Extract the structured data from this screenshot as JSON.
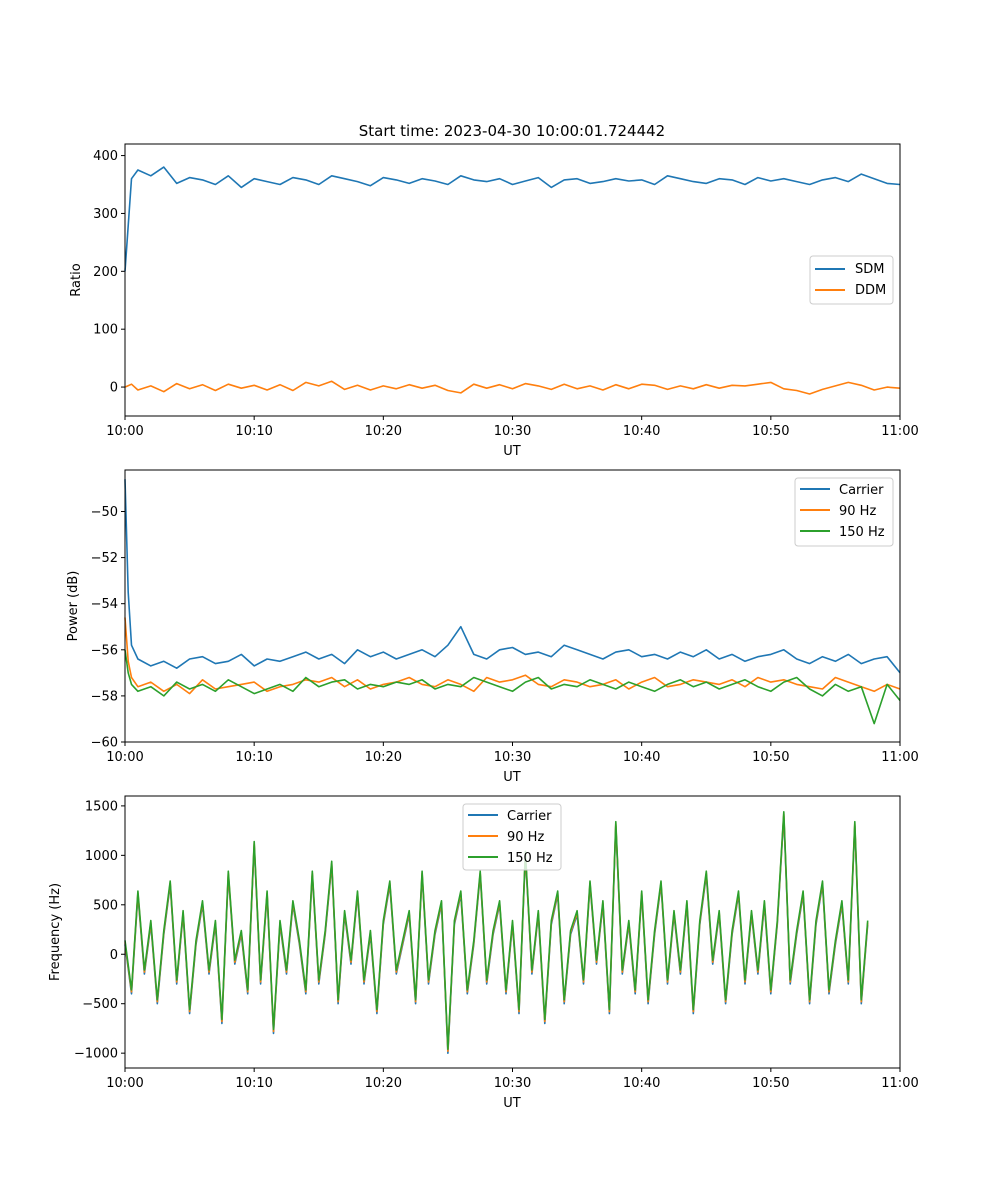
{
  "figure": {
    "title": "Start time: 2023-04-30 10:00:01.724442"
  },
  "chart_data": [
    {
      "type": "line",
      "xlabel": "UT",
      "ylabel": "Ratio",
      "xlim": [
        "10:00",
        "11:00"
      ],
      "ylim": [
        -50,
        420
      ],
      "x_ticks": [
        "10:00",
        "10:10",
        "10:20",
        "10:30",
        "10:40",
        "10:50",
        "11:00"
      ],
      "y_ticks": [
        0,
        100,
        200,
        300,
        400
      ],
      "y_tick_labels": [
        "0",
        "100",
        "200",
        "300",
        "400"
      ],
      "legend_position": "center-right",
      "x_minutes": [
        0,
        0.5,
        1,
        2,
        3,
        4,
        5,
        6,
        7,
        8,
        9,
        10,
        11,
        12,
        13,
        14,
        15,
        16,
        17,
        18,
        19,
        20,
        21,
        22,
        23,
        24,
        25,
        26,
        27,
        28,
        29,
        30,
        31,
        32,
        33,
        34,
        35,
        36,
        37,
        38,
        39,
        40,
        41,
        42,
        43,
        44,
        45,
        46,
        47,
        48,
        49,
        50,
        51,
        52,
        53,
        54,
        55,
        56,
        57,
        58,
        59,
        60
      ],
      "series": [
        {
          "name": "SDM",
          "color": "#1f77b4",
          "values": [
            200,
            360,
            375,
            365,
            380,
            352,
            362,
            358,
            350,
            365,
            345,
            360,
            355,
            350,
            362,
            358,
            350,
            365,
            360,
            355,
            348,
            362,
            358,
            352,
            360,
            356,
            350,
            365,
            358,
            355,
            360,
            350,
            356,
            362,
            345,
            358,
            360,
            352,
            355,
            360,
            356,
            358,
            350,
            365,
            360,
            355,
            352,
            360,
            358,
            350,
            362,
            356,
            360,
            355,
            350,
            358,
            362,
            355,
            368,
            360,
            352,
            350
          ]
        },
        {
          "name": "DDM",
          "color": "#ff7f0e",
          "values": [
            0,
            5,
            -5,
            2,
            -8,
            6,
            -3,
            4,
            -6,
            5,
            -2,
            3,
            -5,
            4,
            -6,
            8,
            2,
            10,
            -4,
            3,
            -5,
            2,
            -3,
            4,
            -2,
            3,
            -6,
            -10,
            5,
            -2,
            4,
            -3,
            6,
            2,
            -4,
            5,
            -3,
            2,
            -5,
            4,
            -3,
            5,
            3,
            -4,
            2,
            -3,
            4,
            -2,
            3,
            2,
            5,
            8,
            -3,
            -6,
            -12,
            -4,
            2,
            8,
            3,
            -5,
            0,
            -2
          ]
        }
      ]
    },
    {
      "type": "line",
      "xlabel": "UT",
      "ylabel": "Power (dB)",
      "xlim": [
        "10:00",
        "11:00"
      ],
      "ylim": [
        -60,
        -48.2
      ],
      "x_ticks": [
        "10:00",
        "10:10",
        "10:20",
        "10:30",
        "10:40",
        "10:50",
        "11:00"
      ],
      "y_ticks": [
        -60,
        -58,
        -56,
        -54,
        -52,
        -50
      ],
      "y_tick_labels": [
        "−60",
        "−58",
        "−56",
        "−54",
        "−52",
        "−50"
      ],
      "legend_position": "top-right",
      "x_minutes": [
        0,
        0.25,
        0.5,
        1,
        2,
        3,
        4,
        5,
        6,
        7,
        8,
        9,
        10,
        11,
        12,
        13,
        14,
        15,
        16,
        17,
        18,
        19,
        20,
        21,
        22,
        23,
        24,
        25,
        26,
        27,
        28,
        29,
        30,
        31,
        32,
        33,
        34,
        35,
        36,
        37,
        38,
        39,
        40,
        41,
        42,
        43,
        44,
        45,
        46,
        47,
        48,
        49,
        50,
        51,
        52,
        53,
        54,
        55,
        56,
        57,
        58,
        59,
        60
      ],
      "series": [
        {
          "name": "Carrier",
          "color": "#1f77b4",
          "values": [
            -48.6,
            -53.5,
            -55.8,
            -56.4,
            -56.7,
            -56.5,
            -56.8,
            -56.4,
            -56.3,
            -56.6,
            -56.5,
            -56.2,
            -56.7,
            -56.4,
            -56.5,
            -56.3,
            -56.1,
            -56.4,
            -56.2,
            -56.6,
            -56.0,
            -56.3,
            -56.1,
            -56.4,
            -56.2,
            -56.0,
            -56.3,
            -55.8,
            -55.0,
            -56.2,
            -56.4,
            -56.0,
            -55.9,
            -56.2,
            -56.1,
            -56.3,
            -55.8,
            -56.0,
            -56.2,
            -56.4,
            -56.1,
            -56.0,
            -56.3,
            -56.2,
            -56.4,
            -56.1,
            -56.3,
            -56.0,
            -56.4,
            -56.2,
            -56.5,
            -56.3,
            -56.2,
            -56.0,
            -56.4,
            -56.6,
            -56.3,
            -56.5,
            -56.2,
            -56.6,
            -56.4,
            -56.3,
            -57.0
          ]
        },
        {
          "name": "90 Hz",
          "color": "#ff7f0e",
          "values": [
            -54.6,
            -56.5,
            -57.2,
            -57.6,
            -57.4,
            -57.8,
            -57.5,
            -57.9,
            -57.3,
            -57.7,
            -57.6,
            -57.5,
            -57.4,
            -57.8,
            -57.6,
            -57.5,
            -57.3,
            -57.4,
            -57.2,
            -57.6,
            -57.3,
            -57.7,
            -57.5,
            -57.4,
            -57.2,
            -57.5,
            -57.6,
            -57.3,
            -57.5,
            -57.8,
            -57.2,
            -57.4,
            -57.3,
            -57.1,
            -57.5,
            -57.6,
            -57.3,
            -57.4,
            -57.6,
            -57.5,
            -57.3,
            -57.7,
            -57.4,
            -57.2,
            -57.6,
            -57.5,
            -57.3,
            -57.4,
            -57.5,
            -57.3,
            -57.6,
            -57.2,
            -57.4,
            -57.3,
            -57.5,
            -57.6,
            -57.7,
            -57.2,
            -57.4,
            -57.6,
            -57.8,
            -57.5,
            -57.7
          ]
        },
        {
          "name": "150 Hz",
          "color": "#2ca02c",
          "values": [
            -56.0,
            -57.0,
            -57.5,
            -57.8,
            -57.6,
            -58.0,
            -57.4,
            -57.7,
            -57.5,
            -57.8,
            -57.3,
            -57.6,
            -57.9,
            -57.7,
            -57.5,
            -57.8,
            -57.2,
            -57.6,
            -57.4,
            -57.3,
            -57.7,
            -57.5,
            -57.6,
            -57.4,
            -57.5,
            -57.3,
            -57.7,
            -57.5,
            -57.6,
            -57.2,
            -57.4,
            -57.6,
            -57.8,
            -57.4,
            -57.2,
            -57.7,
            -57.5,
            -57.6,
            -57.3,
            -57.5,
            -57.7,
            -57.4,
            -57.6,
            -57.8,
            -57.5,
            -57.3,
            -57.6,
            -57.4,
            -57.7,
            -57.5,
            -57.3,
            -57.6,
            -57.8,
            -57.4,
            -57.2,
            -57.7,
            -58.0,
            -57.5,
            -57.8,
            -57.6,
            -59.2,
            -57.5,
            -58.2
          ]
        }
      ]
    },
    {
      "type": "line",
      "xlabel": "UT",
      "ylabel": "Frequency (Hz)",
      "xlim": [
        "10:00",
        "11:00"
      ],
      "ylim": [
        -1150,
        1600
      ],
      "x_ticks": [
        "10:00",
        "10:10",
        "10:20",
        "10:30",
        "10:40",
        "10:50",
        "11:00"
      ],
      "y_ticks": [
        -1000,
        -500,
        0,
        500,
        1000,
        1500
      ],
      "y_tick_labels": [
        "−1000",
        "−500",
        "0",
        "500",
        "1000",
        "1500"
      ],
      "legend_position": "top-center",
      "x_minutes": [
        0,
        0.5,
        1,
        1.5,
        2,
        2.5,
        3,
        3.5,
        4,
        4.5,
        5,
        5.5,
        6,
        6.5,
        7,
        7.5,
        8,
        8.5,
        9,
        9.5,
        10,
        10.5,
        11,
        11.5,
        12,
        12.5,
        13,
        13.5,
        14,
        14.5,
        15,
        15.5,
        16,
        16.5,
        17,
        17.5,
        18,
        18.5,
        19,
        19.5,
        20,
        20.5,
        21,
        21.5,
        22,
        22.5,
        23,
        23.5,
        24,
        24.5,
        25,
        25.5,
        26,
        26.5,
        27,
        27.5,
        28,
        28.5,
        29,
        29.5,
        30,
        30.5,
        31,
        31.5,
        32,
        32.5,
        33,
        33.5,
        34,
        34.5,
        35,
        35.5,
        36,
        36.5,
        37,
        37.5,
        38,
        38.5,
        39,
        39.5,
        40,
        40.5,
        41,
        41.5,
        42,
        42.5,
        43,
        43.5,
        44,
        44.5,
        45,
        45.5,
        46,
        46.5,
        47,
        47.5,
        48,
        48.5,
        49,
        49.5,
        50,
        50.5,
        51,
        51.5,
        52,
        52.5,
        53,
        53.5,
        54,
        54.5,
        55,
        55.5,
        56,
        56.5,
        57,
        57.5,
        58,
        58.5,
        59,
        59.5,
        60
      ],
      "series": [
        {
          "name": "Carrier",
          "color": "#1f77b4",
          "values": [
            100,
            -400,
            600,
            -200,
            300,
            -500,
            200,
            700,
            -300,
            400,
            -600,
            100,
            500,
            -200,
            300,
            -700,
            800,
            -100,
            200,
            -400,
            1100,
            -300,
            600,
            -800,
            300,
            -200,
            500,
            100,
            -400,
            800,
            -300,
            200,
            900,
            -500,
            400,
            -100,
            600,
            -300,
            200,
            -600,
            300,
            700,
            -200,
            100,
            400,
            -500,
            800,
            -300,
            200,
            500,
            -1000,
            300,
            600,
            -400,
            100,
            800,
            -300,
            200,
            500,
            -400,
            300,
            -600,
            1000,
            -200,
            400,
            -700,
            300,
            600,
            -500,
            200,
            400,
            -300,
            700,
            -100,
            500,
            -600,
            1300,
            -200,
            300,
            -400,
            600,
            -500,
            200,
            700,
            -300,
            400,
            -200,
            500,
            -600,
            300,
            800,
            -100,
            400,
            -500,
            200,
            600,
            -300,
            400,
            -200,
            500,
            -400,
            300,
            1400,
            -300,
            200,
            600,
            -500,
            300,
            700,
            -400,
            100,
            500,
            -300,
            1300,
            -500,
            300
          ]
        },
        {
          "name": "90 Hz",
          "color": "#ff7f0e",
          "values": [
            120,
            -380,
            620,
            -180,
            320,
            -480,
            220,
            720,
            -280,
            420,
            -580,
            120,
            520,
            -180,
            320,
            -680,
            820,
            -80,
            220,
            -380,
            1120,
            -280,
            620,
            -780,
            320,
            -180,
            520,
            120,
            -380,
            820,
            -280,
            220,
            920,
            -480,
            420,
            -80,
            620,
            -280,
            220,
            -580,
            320,
            720,
            -180,
            120,
            420,
            -480,
            820,
            -280,
            220,
            520,
            -980,
            320,
            620,
            -380,
            120,
            820,
            -280,
            220,
            520,
            -380,
            320,
            -580,
            1020,
            -180,
            420,
            -680,
            320,
            620,
            -480,
            220,
            420,
            -280,
            720,
            -80,
            520,
            -580,
            1320,
            -180,
            320,
            -380,
            620,
            -480,
            220,
            720,
            -280,
            420,
            -180,
            520,
            -580,
            320,
            820,
            -80,
            420,
            -480,
            220,
            620,
            -280,
            420,
            -180,
            520,
            -380,
            320,
            1420,
            -280,
            220,
            620,
            -480,
            320,
            720,
            -380,
            120,
            520,
            -280,
            1320,
            -480,
            320
          ]
        },
        {
          "name": "150 Hz",
          "color": "#2ca02c",
          "values": [
            140,
            -360,
            640,
            -160,
            340,
            -460,
            240,
            740,
            -260,
            440,
            -560,
            140,
            540,
            -160,
            340,
            -660,
            840,
            -60,
            240,
            -360,
            1140,
            -260,
            640,
            -760,
            340,
            -160,
            540,
            140,
            -360,
            840,
            -260,
            240,
            940,
            -460,
            440,
            -60,
            640,
            -260,
            240,
            -560,
            340,
            740,
            -160,
            140,
            440,
            -460,
            840,
            -260,
            240,
            540,
            -960,
            340,
            640,
            -360,
            140,
            840,
            -260,
            240,
            540,
            -360,
            340,
            -560,
            1040,
            -160,
            440,
            -660,
            340,
            640,
            -460,
            240,
            440,
            -260,
            740,
            -60,
            540,
            -560,
            1340,
            -160,
            340,
            -360,
            640,
            -460,
            240,
            740,
            -260,
            440,
            -160,
            540,
            -560,
            340,
            840,
            -60,
            440,
            -460,
            240,
            640,
            -260,
            440,
            -160,
            540,
            -360,
            340,
            1440,
            -260,
            240,
            640,
            -460,
            340,
            740,
            -360,
            140,
            540,
            -260,
            1340,
            -460,
            340
          ]
        }
      ]
    }
  ]
}
